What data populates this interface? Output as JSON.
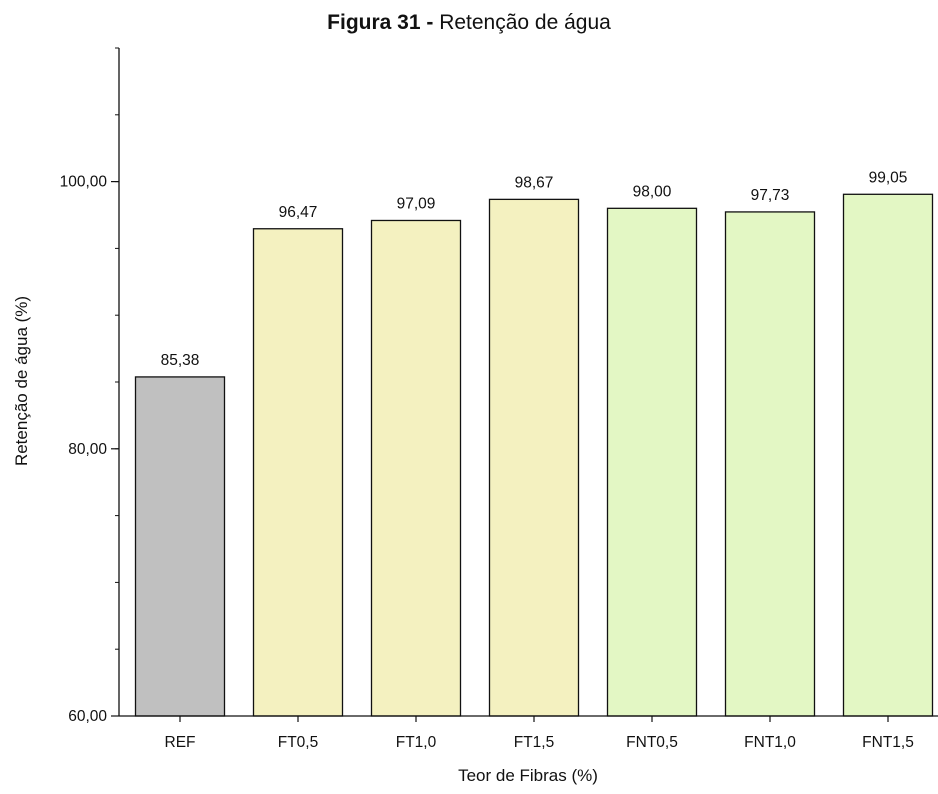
{
  "figure": {
    "caption_bold": "Figura 31 -",
    "caption_text": "Retenção de água"
  },
  "chart_data": {
    "type": "bar",
    "title": "Retenção de água",
    "xlabel": "Teor de Fibras (%)",
    "ylabel": "Retenção de água (%)",
    "ylim": [
      60,
      110
    ],
    "yticks_labeled": [
      60,
      80,
      100
    ],
    "ytick_labels": [
      "60,00",
      "80,00",
      "100,00"
    ],
    "yticks_minor_step": 5,
    "grid": false,
    "categories": [
      "REF",
      "FT0,5",
      "FT1,0",
      "FT1,5",
      "FNT0,5",
      "FNT1,0",
      "FNT1,5"
    ],
    "values": [
      85.38,
      96.47,
      97.09,
      98.67,
      98.0,
      97.73,
      99.05
    ],
    "value_labels": [
      "85,38",
      "96,47",
      "97,09",
      "98,67",
      "98,00",
      "97,73",
      "99,05"
    ],
    "bar_colors": [
      "#c0c0c0",
      "#f4f1c0",
      "#f4f1c0",
      "#f4f1c0",
      "#e3f7c4",
      "#e3f7c4",
      "#e3f7c4"
    ]
  }
}
